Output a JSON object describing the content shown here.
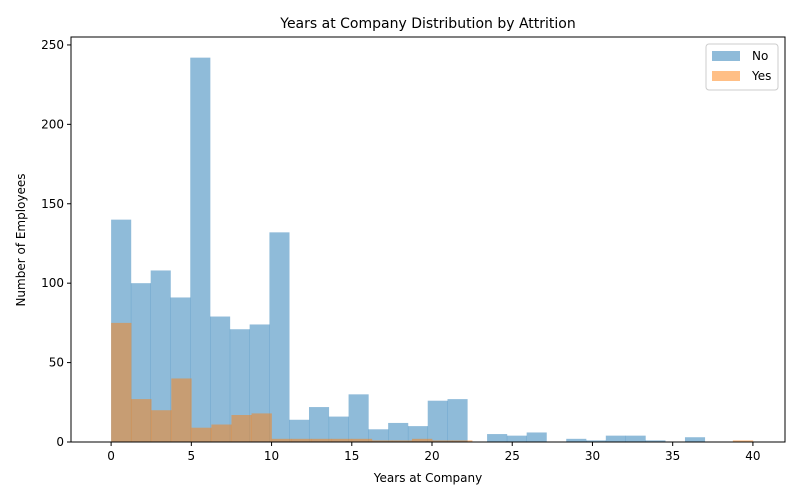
{
  "chart_data": {
    "type": "bar",
    "title": "Years at Company Distribution by Attrition",
    "xlabel": "Years at Company",
    "ylabel": "Number of Employees",
    "xlim": [
      -2.5,
      42
    ],
    "ylim": [
      0,
      255
    ],
    "xticks": [
      0,
      5,
      10,
      15,
      20,
      25,
      30,
      35,
      40
    ],
    "yticks": [
      0,
      50,
      100,
      150,
      200,
      250
    ],
    "grid": false,
    "legend_position": "top-right",
    "series": [
      {
        "name": "No",
        "color": "#1f77b4",
        "opacity": 0.5,
        "bin_width": 1.2333,
        "bin_start": 0,
        "values": [
          140,
          100,
          108,
          91,
          242,
          79,
          71,
          74,
          132,
          14,
          22,
          16,
          30,
          8,
          12,
          10,
          26,
          27,
          0,
          5,
          4,
          6,
          0,
          2,
          1,
          4,
          4,
          1,
          0,
          3
        ]
      },
      {
        "name": "Yes",
        "color": "#ff7f0e",
        "opacity": 0.5,
        "bin_width": 1.25,
        "bin_start": 0,
        "values": [
          75,
          27,
          20,
          40,
          9,
          11,
          17,
          18,
          2,
          2,
          2,
          2,
          2,
          1,
          1,
          2,
          1,
          1,
          0,
          0,
          0,
          0,
          0,
          0,
          0,
          0,
          0,
          0,
          0,
          0,
          0,
          1
        ]
      }
    ]
  }
}
